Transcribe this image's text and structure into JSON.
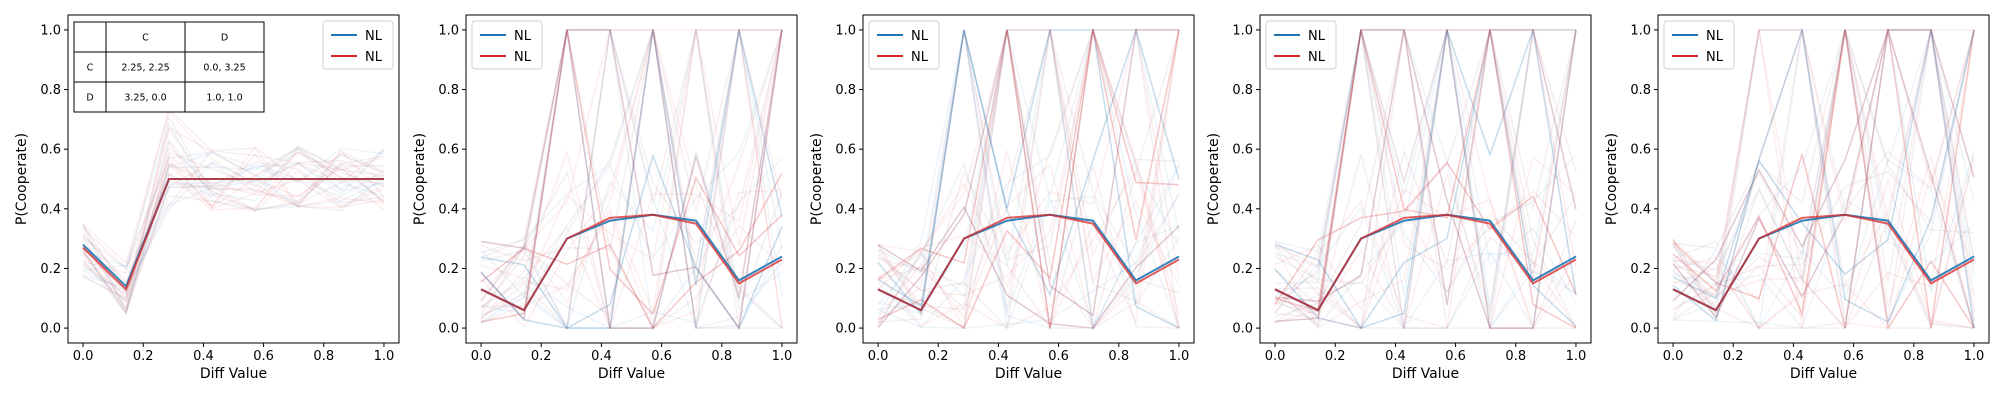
{
  "chart_data": [
    {
      "type": "line",
      "xlabel": "Diff Value",
      "ylabel": "P(Cooperate)",
      "xlim": [
        -0.05,
        1.05
      ],
      "ylim": [
        -0.05,
        1.05
      ],
      "xticks": [
        "0.0",
        "0.2",
        "0.4",
        "0.6",
        "0.8",
        "1.0"
      ],
      "yticks": [
        "0.0",
        "0.2",
        "0.4",
        "0.6",
        "0.8",
        "1.0"
      ],
      "legend_position": "top-right",
      "x": [
        0.0,
        0.1429,
        0.2857,
        0.4286,
        0.5714,
        0.7143,
        0.8571,
        1.0
      ],
      "series": [
        {
          "name": "NL",
          "color": "#1f77b4",
          "values": [
            0.28,
            0.14,
            0.5,
            0.5,
            0.5,
            0.5,
            0.5,
            0.5
          ]
        },
        {
          "name": "NL",
          "color": "#d62728",
          "values": [
            0.27,
            0.13,
            0.5,
            0.5,
            0.5,
            0.5,
            0.5,
            0.5
          ]
        }
      ],
      "payoff_table": {
        "col_headers": [
          "C",
          "D"
        ],
        "rows": [
          {
            "label": "C",
            "cells": [
              "2.25, 2.25",
              "0.0, 3.25"
            ]
          },
          {
            "label": "D",
            "cells": [
              "3.25, 0.0",
              "1.0, 1.0"
            ]
          }
        ]
      }
    },
    {
      "type": "line",
      "xlabel": "Diff Value",
      "ylabel": "P(Cooperate)",
      "xlim": [
        -0.05,
        1.05
      ],
      "ylim": [
        -0.05,
        1.05
      ],
      "xticks": [
        "0.0",
        "0.2",
        "0.4",
        "0.6",
        "0.8",
        "1.0"
      ],
      "yticks": [
        "0.0",
        "0.2",
        "0.4",
        "0.6",
        "0.8",
        "1.0"
      ],
      "legend_position": "top-left",
      "x": [
        0.0,
        0.1429,
        0.2857,
        0.4286,
        0.5714,
        0.7143,
        0.8571,
        1.0
      ],
      "series": [
        {
          "name": "NL",
          "color": "#1f77b4",
          "values": [
            0.13,
            0.06,
            0.3,
            0.36,
            0.38,
            0.36,
            0.16,
            0.24
          ]
        },
        {
          "name": "NL",
          "color": "#d62728",
          "values": [
            0.13,
            0.06,
            0.3,
            0.37,
            0.38,
            0.35,
            0.15,
            0.23
          ]
        }
      ]
    },
    {
      "type": "line",
      "xlabel": "Diff Value",
      "ylabel": "P(Cooperate)",
      "xlim": [
        -0.05,
        1.05
      ],
      "ylim": [
        -0.05,
        1.05
      ],
      "xticks": [
        "0.0",
        "0.2",
        "0.4",
        "0.6",
        "0.8",
        "1.0"
      ],
      "yticks": [
        "0.0",
        "0.2",
        "0.4",
        "0.6",
        "0.8",
        "1.0"
      ],
      "legend_position": "top-left",
      "x": [
        0.0,
        0.1429,
        0.2857,
        0.4286,
        0.5714,
        0.7143,
        0.8571,
        1.0
      ],
      "series": [
        {
          "name": "NL",
          "color": "#1f77b4",
          "values": [
            0.13,
            0.06,
            0.3,
            0.36,
            0.38,
            0.36,
            0.16,
            0.24
          ]
        },
        {
          "name": "NL",
          "color": "#d62728",
          "values": [
            0.13,
            0.06,
            0.3,
            0.37,
            0.38,
            0.35,
            0.15,
            0.23
          ]
        }
      ]
    },
    {
      "type": "line",
      "xlabel": "Diff Value",
      "ylabel": "P(Cooperate)",
      "xlim": [
        -0.05,
        1.05
      ],
      "ylim": [
        -0.05,
        1.05
      ],
      "xticks": [
        "0.0",
        "0.2",
        "0.4",
        "0.6",
        "0.8",
        "1.0"
      ],
      "yticks": [
        "0.0",
        "0.2",
        "0.4",
        "0.6",
        "0.8",
        "1.0"
      ],
      "legend_position": "top-left",
      "x": [
        0.0,
        0.1429,
        0.2857,
        0.4286,
        0.5714,
        0.7143,
        0.8571,
        1.0
      ],
      "series": [
        {
          "name": "NL",
          "color": "#1f77b4",
          "values": [
            0.13,
            0.06,
            0.3,
            0.36,
            0.38,
            0.36,
            0.16,
            0.24
          ]
        },
        {
          "name": "NL",
          "color": "#d62728",
          "values": [
            0.13,
            0.06,
            0.3,
            0.37,
            0.38,
            0.35,
            0.15,
            0.23
          ]
        }
      ]
    },
    {
      "type": "line",
      "xlabel": "Diff Value",
      "ylabel": "P(Cooperate)",
      "xlim": [
        -0.05,
        1.05
      ],
      "ylim": [
        -0.05,
        1.05
      ],
      "xticks": [
        "0.0",
        "0.2",
        "0.4",
        "0.6",
        "0.8",
        "1.0"
      ],
      "yticks": [
        "0.0",
        "0.2",
        "0.4",
        "0.6",
        "0.8",
        "1.0"
      ],
      "legend_position": "top-left",
      "x": [
        0.0,
        0.1429,
        0.2857,
        0.4286,
        0.5714,
        0.7143,
        0.8571,
        1.0
      ],
      "series": [
        {
          "name": "NL",
          "color": "#1f77b4",
          "values": [
            0.13,
            0.06,
            0.3,
            0.36,
            0.38,
            0.36,
            0.16,
            0.24
          ]
        },
        {
          "name": "NL",
          "color": "#d62728",
          "values": [
            0.13,
            0.06,
            0.3,
            0.37,
            0.38,
            0.35,
            0.15,
            0.23
          ]
        }
      ]
    }
  ]
}
